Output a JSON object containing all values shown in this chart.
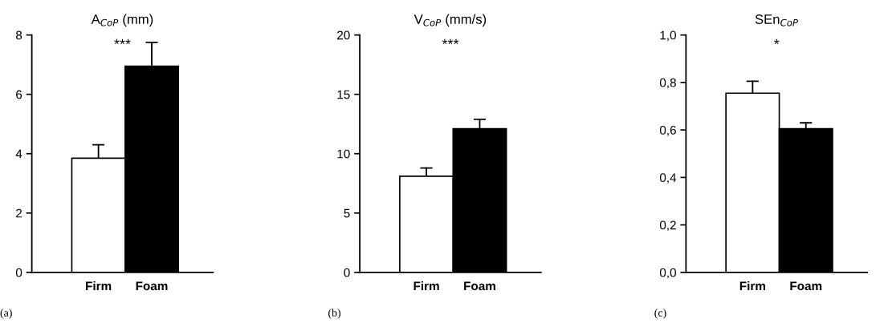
{
  "chart_data": [
    {
      "type": "bar",
      "title": "A$_{CoP}$ (mm)",
      "categories": [
        "Firm",
        "Foam"
      ],
      "values": [
        3.85,
        6.95
      ],
      "colors": [
        "#ffffff",
        "#000000"
      ],
      "errors": [
        [
          3.85,
          4.3
        ],
        [
          6.95,
          7.75
        ]
      ],
      "ylim": [
        0,
        8
      ],
      "yticks": [
        0,
        2,
        4,
        6,
        8
      ],
      "annotations": [
        "***",
        "(a)"
      ]
    },
    {
      "type": "bar",
      "title": "V$_{CoP}$ (mm/s)",
      "categories": [
        "Firm",
        "Foam"
      ],
      "values": [
        8.1,
        12.1
      ],
      "colors": [
        "#ffffff",
        "#000000"
      ],
      "errors": [
        [
          8.1,
          8.8
        ],
        [
          12.1,
          12.9
        ]
      ],
      "ylim": [
        0,
        20
      ],
      "yticks": [
        0,
        5,
        10,
        15,
        20
      ],
      "annotations": [
        "***",
        "(b)"
      ]
    },
    {
      "type": "bar",
      "title": "SEn$_{CoP}$",
      "categories": [
        "Firm",
        "Foam"
      ],
      "values": [
        0.755,
        0.605
      ],
      "colors": [
        "#ffffff",
        "#000000"
      ],
      "errors": [
        [
          0.755,
          0.805
        ],
        [
          0.605,
          0.63
        ]
      ],
      "ylim": [
        0,
        1.0
      ],
      "yticks": [
        {
          "value": 0,
          "label": "0,0"
        },
        {
          "value": 0.2,
          "label": "0,2"
        },
        {
          "value": 0.4,
          "label": "0,4"
        },
        {
          "value": 0.6,
          "label": "0,6"
        },
        {
          "value": 0.8,
          "label": "0,8"
        },
        {
          "value": 1.0,
          "label": "1,0"
        }
      ],
      "annotations": [
        "*",
        "(c)"
      ]
    }
  ]
}
